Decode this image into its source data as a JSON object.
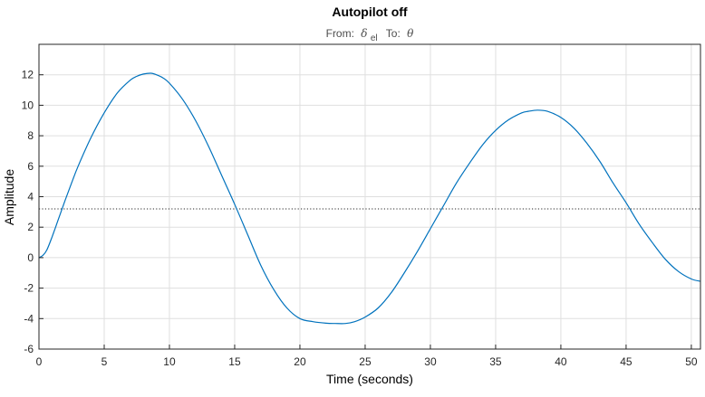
{
  "chart_data": {
    "type": "line",
    "title": "Autopilot off",
    "subtitle": {
      "from_label": "From:",
      "from_symbol": "δ",
      "from_subscript": "el",
      "to_label": "To:",
      "to_symbol": "θ"
    },
    "xlabel": "Time (seconds)",
    "ylabel": "Amplitude",
    "xlim": [
      0,
      50.7
    ],
    "ylim": [
      -6,
      14
    ],
    "xticks": [
      0,
      5,
      10,
      15,
      20,
      25,
      30,
      35,
      40,
      45,
      50
    ],
    "yticks": [
      -6,
      -4,
      -2,
      0,
      2,
      4,
      6,
      8,
      10,
      12
    ],
    "grid": true,
    "series": [
      {
        "color": "#0072bd",
        "style": "solid",
        "x": [
          0,
          0.3,
          0.6,
          1,
          1.5,
          2,
          2.5,
          3,
          4,
          5,
          6,
          7,
          7.5,
          8,
          8.6,
          9,
          9.5,
          10,
          11,
          12,
          13,
          14,
          15,
          16,
          17,
          18,
          19,
          20,
          21,
          22,
          22.7,
          23.5,
          24.2,
          25,
          26,
          27,
          28,
          29,
          30,
          31,
          32,
          33,
          34,
          35,
          36,
          37,
          37.5,
          38.2,
          39,
          40,
          41,
          42,
          43,
          44,
          45,
          46,
          47,
          48,
          49,
          50,
          50.7
        ],
        "y": [
          0,
          0.15,
          0.5,
          1.35,
          2.55,
          3.75,
          4.9,
          6.0,
          7.9,
          9.5,
          10.8,
          11.65,
          11.9,
          12.05,
          12.1,
          12.0,
          11.8,
          11.45,
          10.4,
          9.0,
          7.3,
          5.4,
          3.5,
          1.5,
          -0.5,
          -2.1,
          -3.3,
          -4.0,
          -4.2,
          -4.3,
          -4.32,
          -4.32,
          -4.2,
          -3.9,
          -3.3,
          -2.3,
          -1.0,
          0.4,
          1.9,
          3.4,
          4.9,
          6.2,
          7.4,
          8.35,
          9.05,
          9.5,
          9.6,
          9.68,
          9.6,
          9.2,
          8.5,
          7.5,
          6.3,
          4.9,
          3.6,
          2.2,
          1.0,
          -0.1,
          -0.9,
          -1.4,
          -1.55
        ]
      }
    ],
    "reference_lines": [
      {
        "y": 3.2,
        "style": "dotted",
        "color": "#262626"
      }
    ]
  }
}
